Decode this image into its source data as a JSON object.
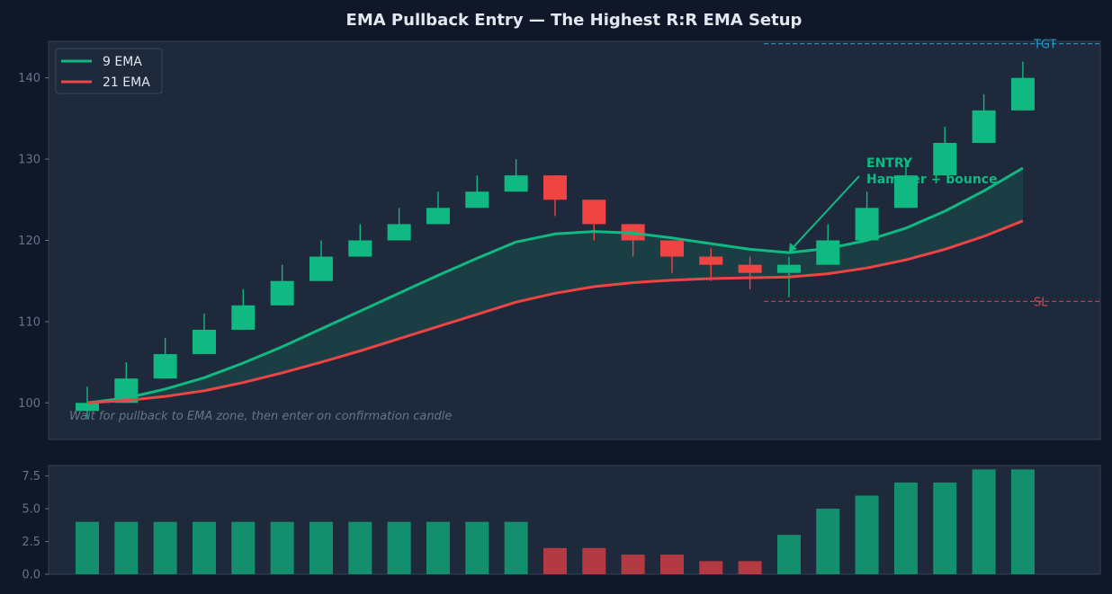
{
  "chart_data": [
    {
      "type": "candlestick",
      "title": "EMA Pullback Entry — The Highest R:R EMA Setup",
      "ylim": [
        95.5,
        144.5
      ],
      "yticks": [
        100,
        110,
        120,
        130,
        140
      ],
      "candles": [
        {
          "o": 99,
          "c": 100,
          "h": 102,
          "l": 98
        },
        {
          "o": 100,
          "c": 103,
          "h": 105,
          "l": 100
        },
        {
          "o": 103,
          "c": 106,
          "h": 108,
          "l": 103
        },
        {
          "o": 106,
          "c": 109,
          "h": 111,
          "l": 106
        },
        {
          "o": 109,
          "c": 112,
          "h": 114,
          "l": 109
        },
        {
          "o": 112,
          "c": 115,
          "h": 117,
          "l": 112
        },
        {
          "o": 115,
          "c": 118,
          "h": 120,
          "l": 115
        },
        {
          "o": 118,
          "c": 120,
          "h": 122,
          "l": 118
        },
        {
          "o": 120,
          "c": 122,
          "h": 124,
          "l": 120
        },
        {
          "o": 122,
          "c": 124,
          "h": 126,
          "l": 122
        },
        {
          "o": 124,
          "c": 126,
          "h": 128,
          "l": 124
        },
        {
          "o": 126,
          "c": 128,
          "h": 130,
          "l": 126
        },
        {
          "o": 128,
          "c": 125,
          "h": 128,
          "l": 123
        },
        {
          "o": 125,
          "c": 122,
          "h": 125,
          "l": 120
        },
        {
          "o": 122,
          "c": 120,
          "h": 122,
          "l": 118
        },
        {
          "o": 120,
          "c": 118,
          "h": 120,
          "l": 116
        },
        {
          "o": 118,
          "c": 117,
          "h": 119,
          "l": 115
        },
        {
          "o": 117,
          "c": 116,
          "h": 118,
          "l": 114
        },
        {
          "o": 116,
          "c": 117,
          "h": 118,
          "l": 113
        },
        {
          "o": 117,
          "c": 120,
          "h": 122,
          "l": 117
        },
        {
          "o": 120,
          "c": 124,
          "h": 126,
          "l": 120
        },
        {
          "o": 124,
          "c": 128,
          "h": 130,
          "l": 124
        },
        {
          "o": 128,
          "c": 132,
          "h": 134,
          "l": 128
        },
        {
          "o": 132,
          "c": 136,
          "h": 138,
          "l": 132
        },
        {
          "o": 136,
          "c": 140,
          "h": 142,
          "l": 136
        }
      ],
      "series": [
        {
          "name": "9 EMA",
          "color": "#10b981",
          "values": [
            100,
            100.6,
            101.7,
            103.1,
            104.9,
            106.9,
            109.1,
            111.3,
            113.5,
            115.7,
            117.8,
            119.8,
            120.8,
            121.1,
            120.9,
            120.3,
            119.6,
            118.9,
            118.5,
            119.0,
            120.0,
            121.5,
            123.6,
            126.1,
            128.9
          ]
        },
        {
          "name": "21 EMA",
          "color": "#ef4444",
          "values": [
            100,
            100.3,
            100.8,
            101.5,
            102.5,
            103.7,
            105.0,
            106.4,
            107.9,
            109.4,
            110.9,
            112.4,
            113.5,
            114.3,
            114.8,
            115.1,
            115.3,
            115.4,
            115.5,
            115.9,
            116.6,
            117.6,
            118.9,
            120.5,
            122.4
          ]
        }
      ],
      "levels": [
        {
          "label": "TGT",
          "value": 144.2,
          "color": "#2299c8"
        },
        {
          "label": "SL",
          "value": 112.5,
          "color": "#d6454e"
        }
      ],
      "annotations": {
        "entry_line1": "ENTRY",
        "entry_line2": "Hammer + bounce",
        "note": "Wait for pullback to EMA zone, then enter on confirmation candle",
        "entry_index": 18,
        "entry_price": 118.5
      },
      "legend": "upper left",
      "colors": {
        "up": "#10b981",
        "down": "#ef4444",
        "panel": "#1e293b",
        "axis": "#334155",
        "tick": "#64748b"
      }
    },
    {
      "type": "bar",
      "ylim": [
        0,
        8.3
      ],
      "yticks": [
        0.0,
        2.5,
        5.0,
        7.5
      ],
      "values": [
        4,
        4,
        4,
        4,
        4,
        4,
        4,
        4,
        4,
        4,
        4,
        4,
        2,
        2,
        1.5,
        1.5,
        1,
        1,
        3,
        5,
        6,
        7,
        7,
        8,
        8
      ],
      "bar_colors": [
        "up",
        "up",
        "up",
        "up",
        "up",
        "up",
        "up",
        "up",
        "up",
        "up",
        "up",
        "up",
        "down",
        "down",
        "down",
        "down",
        "down",
        "down",
        "up",
        "up",
        "up",
        "up",
        "up",
        "up",
        "up"
      ],
      "colors": {
        "up": "#138f6e",
        "down": "#b33a42"
      }
    }
  ]
}
